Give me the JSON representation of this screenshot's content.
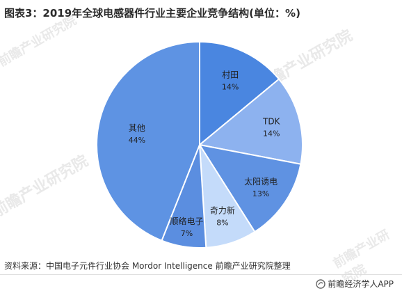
{
  "title": "图表3：2019年全球电感器件行业主要企业竞争结构(单位：%)",
  "source": "资料来源：中国电子元件行业协会 Mordor Intelligence 前瞻产业研究院整理",
  "brand": "前瞻经济学人APP",
  "watermark": "前瞻产业研究院",
  "chart_data": {
    "type": "pie",
    "title": "图表3：2019年全球电感器件行业主要企业竞争结构(单位：%)",
    "unit": "%",
    "slices": [
      {
        "label": "村田",
        "value": 14,
        "value_label": "14%",
        "color": "#4a86e0"
      },
      {
        "label": "TDK",
        "value": 14,
        "value_label": "14%",
        "color": "#8db2ef"
      },
      {
        "label": "太阳诱电",
        "value": 13,
        "value_label": "13%",
        "color": "#5f92e2"
      },
      {
        "label": "奇力新",
        "value": 8,
        "value_label": "8%",
        "color": "#c4dbfa"
      },
      {
        "label": "顺络电子",
        "value": 7,
        "value_label": "7%",
        "color": "#5b8ee0"
      },
      {
        "label": "其他",
        "value": 44,
        "value_label": "44%",
        "color": "#5e93e3"
      }
    ]
  }
}
